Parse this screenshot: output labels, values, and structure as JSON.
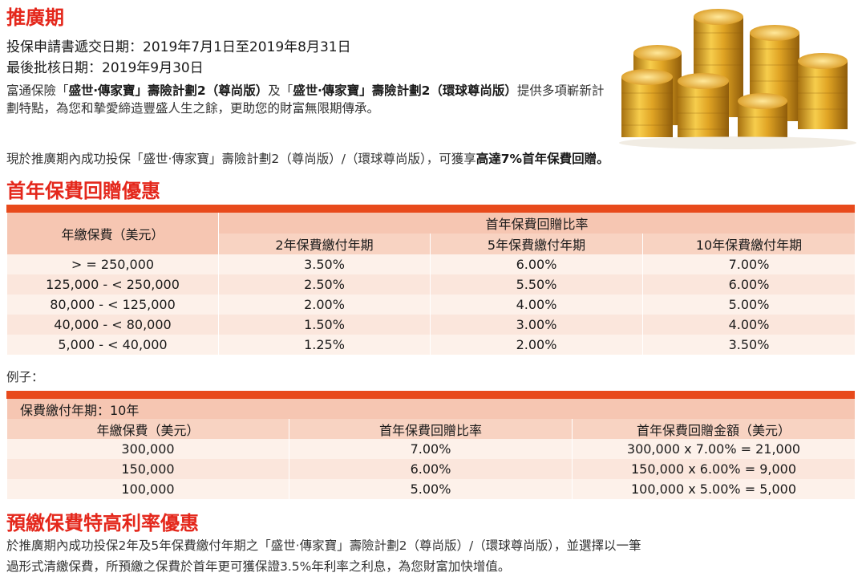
{
  "promo": {
    "title": "推廣期",
    "submission_label": "投保申請書遞交日期：",
    "submission_value": "2019年7月1日至2019年8月31日",
    "approval_label": "最後批核日期：",
    "approval_value": "2019年9月30日",
    "intro_1": "富通保險「",
    "intro_2": "盛世‧傳家寶」壽險計劃2（尊尚版）",
    "intro_3": "及「",
    "intro_4": "盛世‧傳家寶」壽險計劃2（環球尊尚版）",
    "intro_5": "提供多項嶄新計劃特點，為您和摯愛締造豐盛人生之餘，更助您的財富無限期傳承。",
    "offer_text": "現於推廣期內成功投保「盛世‧傳家寶」壽險計劃2（尊尚版）/（環球尊尚版），可獲享",
    "offer_bold": "高達7%首年保費回贈。"
  },
  "rebate": {
    "title": "首年保費回贈優惠",
    "col_premium": "年繳保費（美元）",
    "col_ratio": "首年保費回贈比率",
    "sub_headers": [
      "2年保費繳付年期",
      "5年保費繳付年期",
      "10年保費繳付年期"
    ],
    "rows": [
      {
        "range": "> = 250,000",
        "y2": "3.50%",
        "y5": "6.00%",
        "y10": "7.00%"
      },
      {
        "range": "125,000 - < 250,000",
        "y2": "2.50%",
        "y5": "5.50%",
        "y10": "6.00%"
      },
      {
        "range": "80,000 - < 125,000",
        "y2": "2.00%",
        "y5": "4.00%",
        "y10": "5.00%"
      },
      {
        "range": "40,000 - < 80,000",
        "y2": "1.50%",
        "y5": "3.00%",
        "y10": "4.00%"
      },
      {
        "range": "5,000 - < 40,000",
        "y2": "1.25%",
        "y5": "2.00%",
        "y10": "3.50%"
      }
    ]
  },
  "example": {
    "label": "例子：",
    "term": "保費繳付年期：10年",
    "headers": [
      "年繳保費（美元）",
      "首年保費回贈比率",
      "首年保費回贈金額（美元）"
    ],
    "rows": [
      {
        "premium": "300,000",
        "ratio": "7.00%",
        "amount": "300,000 x 7.00% = 21,000"
      },
      {
        "premium": "150,000",
        "ratio": "6.00%",
        "amount": "150,000 x 6.00% = 9,000"
      },
      {
        "premium": "100,000",
        "ratio": "5.00%",
        "amount": "100,000 x 5.00% = 5,000"
      }
    ]
  },
  "prepay": {
    "title": "預繳保費特高利率優惠",
    "line1": "於推廣期內成功投保2年及5年保費繳付年期之「盛世‧傳家寶」壽險計劃2（尊尚版）/（環球尊尚版），並選擇以一筆",
    "line2": "過形式清繳保費，所預繳之保費於首年更可獲保證3.5%年利率之利息，為您財富加快增值。"
  },
  "colors": {
    "accent": "#e4271b",
    "strip": "#e84a1c",
    "header": "#f6c6b2",
    "row_light": "#fdf1ea",
    "row_mid": "#fbe6dc"
  },
  "image": {
    "icon": "gold-coins-stack-icon"
  }
}
